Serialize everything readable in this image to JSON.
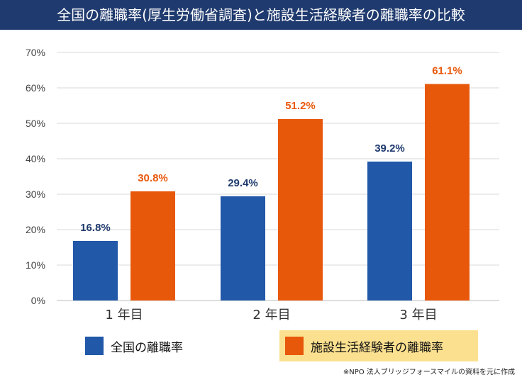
{
  "title": "全国の離職率(厚生労働省調査)と施設生活経験者の離職率の比較",
  "colors": {
    "header_bg": "#1f3a6e",
    "series_national": "#2158a8",
    "series_facility": "#e8580b",
    "label_national": "#1f3a6e",
    "label_facility": "#e8580b",
    "legend_highlight": "#fbe08f"
  },
  "chart_data": {
    "type": "bar",
    "title": "全国の離職率(厚生労働省調査)と施設生活経験者の離職率の比較",
    "categories": [
      "1 年目",
      "2 年目",
      "3 年目"
    ],
    "series": [
      {
        "name": "全国の離職率",
        "values": [
          16.8,
          29.4,
          39.2
        ],
        "labels": [
          "16.8%",
          "29.4%",
          "39.2%"
        ]
      },
      {
        "name": "施設生活経験者の離職率",
        "values": [
          30.8,
          51.2,
          61.1
        ],
        "labels": [
          "30.8%",
          "51.2%",
          "61.1%"
        ]
      }
    ],
    "ylim": [
      0,
      70
    ],
    "yticks": [
      "0%",
      "10%",
      "20%",
      "30%",
      "40%",
      "50%",
      "60%",
      "70%"
    ],
    "grid": true,
    "legend_position": "bottom"
  },
  "legend": {
    "national": "全国の離職率",
    "facility": "施設生活経験者の離職率"
  },
  "source_note": "※NPO 法人ブリッジフォースマイルの資料を元に作成"
}
